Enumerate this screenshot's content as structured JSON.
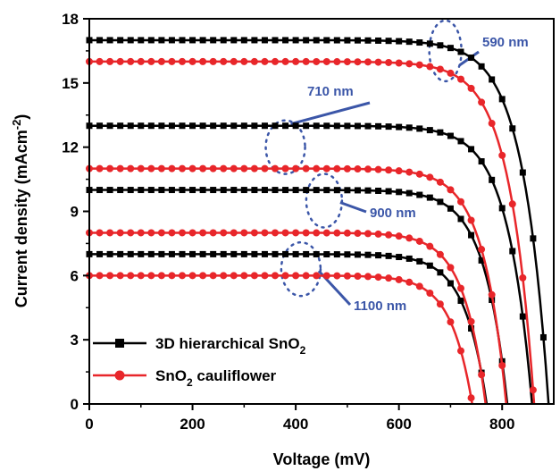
{
  "chart_data": {
    "type": "line",
    "xlabel": "Voltage (mV)",
    "ylabel": "Current density (mAcm",
    "ylabel_sup": "-2",
    "ylabel_end": ")",
    "xlim": [
      0,
      900
    ],
    "ylim": [
      0,
      18
    ],
    "x_ticks": [
      0,
      200,
      400,
      600,
      800
    ],
    "x_tick_labels": [
      "0",
      "200",
      "400",
      "600",
      "800"
    ],
    "y_ticks": [
      0,
      3,
      6,
      9,
      12,
      15,
      18
    ],
    "y_tick_labels": [
      "0",
      "3",
      "6",
      "9",
      "12",
      "15",
      "18"
    ],
    "grid": false,
    "legend_position": "bottom-left",
    "legend": [
      {
        "label": "3D hierarchical SnO",
        "sub": "2",
        "suffix": "",
        "color": "#000000",
        "marker": "square"
      },
      {
        "label": "SnO",
        "sub": "2",
        "suffix": " cauliflower",
        "color": "#e8262a",
        "marker": "circle"
      }
    ],
    "series": [
      {
        "group": "3D hierarchical SnO2",
        "color": "#000000",
        "marker": "square",
        "jsc": 17,
        "voc": 890
      },
      {
        "group": "3D hierarchical SnO2",
        "color": "#000000",
        "marker": "square",
        "jsc": 13,
        "voc": 858
      },
      {
        "group": "3D hierarchical SnO2",
        "color": "#000000",
        "marker": "square",
        "jsc": 10,
        "voc": 810
      },
      {
        "group": "3D hierarchical SnO2",
        "color": "#000000",
        "marker": "square",
        "jsc": 7,
        "voc": 770
      },
      {
        "group": "SnO2 cauliflower",
        "color": "#e8262a",
        "marker": "circle",
        "jsc": 16,
        "voc": 862
      },
      {
        "group": "SnO2 cauliflower",
        "color": "#e8262a",
        "marker": "circle",
        "jsc": 11,
        "voc": 808
      },
      {
        "group": "SnO2 cauliflower",
        "color": "#e8262a",
        "marker": "circle",
        "jsc": 8,
        "voc": 768
      },
      {
        "group": "SnO2 cauliflower",
        "color": "#e8262a",
        "marker": "circle",
        "jsc": 6,
        "voc": 742
      }
    ],
    "annotations": [
      {
        "text": "590 nm",
        "ellipse_x": 690,
        "ellipse_y": 16.5,
        "color": "#3b56a8"
      },
      {
        "text": "710 nm",
        "ellipse_x": 380,
        "ellipse_y": 12,
        "color": "#3b56a8"
      },
      {
        "text": "900 nm",
        "ellipse_x": 455,
        "ellipse_y": 9.5,
        "color": "#3b56a8"
      },
      {
        "text": "1100 nm",
        "ellipse_x": 410,
        "ellipse_y": 6.3,
        "color": "#3b56a8"
      }
    ]
  }
}
